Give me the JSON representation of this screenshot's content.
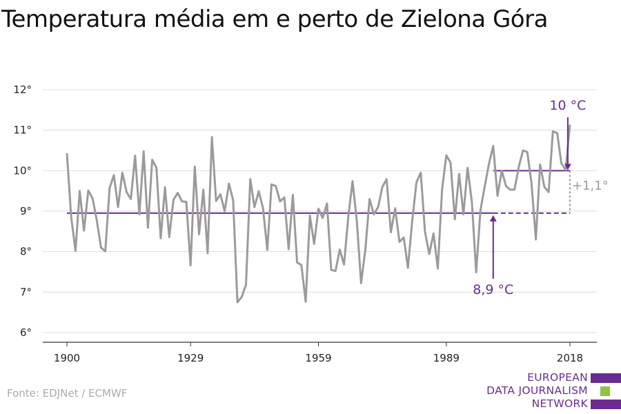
{
  "title": "Temperatura média em e perto de Zielona Góra",
  "source": "Fonte: EDJNet / ECMWF",
  "logo": {
    "lines": [
      "EUROPEAN",
      "DATA JOURNALISM",
      "NETWORK"
    ],
    "colors": {
      "purple": "#6a2c91",
      "green": "#8dc63f"
    }
  },
  "chart_data": {
    "type": "line",
    "title": "Temperatura média em e perto de Zielona Góra",
    "xlim": [
      1900,
      2018
    ],
    "ylim": [
      6,
      12
    ],
    "x_ticks": [
      1900,
      1929,
      1959,
      1989,
      2018
    ],
    "y_ticks": [
      6,
      7,
      8,
      9,
      10,
      11,
      12
    ],
    "y_tick_labels": [
      "6°",
      "7°",
      "8°",
      "9°",
      "10°",
      "11°",
      "12°"
    ],
    "grid": true,
    "series": [
      {
        "color": "#9b9b9b",
        "x": [
          1900,
          1901,
          1902,
          1903,
          1904,
          1905,
          1906,
          1907,
          1908,
          1909,
          1910,
          1911,
          1912,
          1913,
          1914,
          1915,
          1916,
          1917,
          1918,
          1919,
          1920,
          1921,
          1922,
          1923,
          1924,
          1925,
          1926,
          1927,
          1928,
          1929,
          1930,
          1931,
          1932,
          1933,
          1934,
          1935,
          1936,
          1937,
          1938,
          1939,
          1940,
          1941,
          1942,
          1943,
          1944,
          1945,
          1946,
          1947,
          1948,
          1949,
          1950,
          1951,
          1952,
          1953,
          1954,
          1955,
          1956,
          1957,
          1958,
          1959,
          1960,
          1961,
          1962,
          1963,
          1964,
          1965,
          1966,
          1967,
          1968,
          1969,
          1970,
          1971,
          1972,
          1973,
          1974,
          1975,
          1976,
          1977,
          1978,
          1979,
          1980,
          1981,
          1982,
          1983,
          1984,
          1985,
          1986,
          1987,
          1988,
          1989,
          1990,
          1991,
          1992,
          1993,
          1994,
          1995,
          1996,
          1997,
          1998,
          1999,
          2000,
          2001,
          2002,
          2003,
          2004,
          2005,
          2006,
          2007,
          2008,
          2009,
          2010,
          2011,
          2012,
          2013,
          2014,
          2015,
          2016,
          2017,
          2018
        ],
        "values": [
          10.43,
          8.85,
          8.02,
          9.5,
          8.52,
          9.51,
          9.32,
          8.78,
          8.1,
          8.01,
          9.57,
          9.89,
          9.1,
          9.95,
          9.47,
          9.3,
          10.37,
          8.92,
          10.48,
          8.59,
          10.27,
          10.07,
          8.33,
          9.59,
          8.36,
          9.28,
          9.45,
          9.24,
          9.23,
          7.66,
          10.1,
          8.43,
          9.53,
          7.96,
          10.83,
          9.25,
          9.42,
          9.0,
          9.68,
          9.27,
          6.75,
          6.88,
          7.18,
          9.79,
          9.1,
          9.49,
          9.07,
          8.04,
          9.66,
          9.62,
          9.24,
          9.34,
          8.06,
          9.4,
          7.73,
          7.67,
          6.76,
          8.89,
          8.19,
          9.06,
          8.83,
          9.19,
          7.55,
          7.52,
          8.05,
          7.68,
          8.85,
          9.74,
          8.77,
          7.22,
          8.05,
          9.3,
          8.92,
          9.1,
          9.6,
          9.79,
          8.48,
          9.07,
          8.24,
          8.35,
          7.6,
          8.76,
          9.72,
          9.95,
          8.49,
          7.94,
          8.45,
          7.58,
          9.53,
          10.38,
          10.2,
          8.8,
          9.92,
          8.92,
          10.07,
          9.22,
          7.49,
          9.02,
          9.6,
          10.17,
          10.61,
          9.38,
          10.0,
          9.62,
          9.53,
          9.53,
          10.1,
          10.5,
          10.46,
          9.67,
          8.3,
          10.15,
          9.6,
          9.47,
          10.97,
          10.93,
          10.18,
          10.02,
          11.14
        ]
      }
    ],
    "reference_lines": [
      {
        "label": "8,9 °C",
        "value": 8.95,
        "from": 1900,
        "to": 2018,
        "dashed_from": 2000,
        "color": "#6a2c91"
      },
      {
        "label": "10 °C",
        "value": 10.0,
        "from": 2000,
        "to": 2018,
        "color": "#6a2c91"
      }
    ],
    "annotations": [
      {
        "text": "10 °C",
        "color": "#6a2c91"
      },
      {
        "text": "8,9 °C",
        "color": "#6a2c91"
      },
      {
        "text": "+1,1°",
        "color": "#9b9b9b"
      }
    ]
  }
}
